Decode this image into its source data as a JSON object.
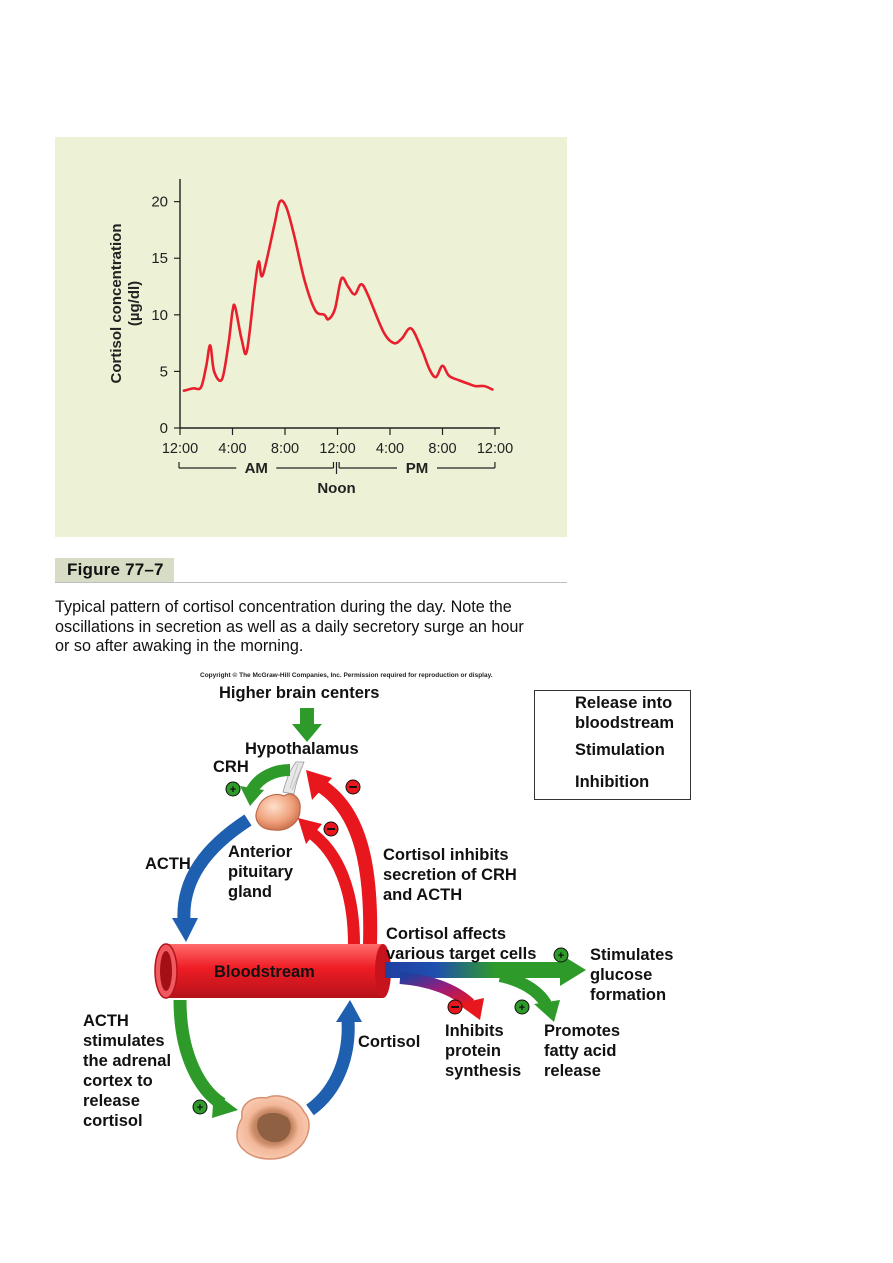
{
  "chart_data": {
    "type": "line",
    "ylabel": "Cortisol concentration\n(µg/dl)",
    "ylabel_line1": "Cortisol concentration",
    "ylabel_line2": "(µg/dl)",
    "ylim": [
      0,
      22
    ],
    "yticks": [
      0,
      5,
      10,
      15,
      20
    ],
    "xticks": [
      "12:00",
      "4:00",
      "8:00",
      "12:00",
      "4:00",
      "8:00",
      "12:00"
    ],
    "xtick_hours": [
      0,
      4,
      8,
      12,
      16,
      20,
      24
    ],
    "xlim": [
      0,
      24
    ],
    "period_labels": {
      "am": "AM",
      "pm": "PM",
      "noon": "Noon"
    },
    "series": [
      {
        "color": "#e8202e",
        "hours": [
          0.3,
          1.0,
          1.6,
          2.0,
          2.3,
          2.6,
          3.2,
          3.7,
          4.0,
          4.2,
          4.7,
          5.1,
          5.7,
          6.0,
          6.3,
          7.2,
          7.6,
          8.1,
          8.7,
          9.5,
          10.3,
          11.0,
          11.3,
          11.8,
          12.3,
          12.8,
          13.3,
          13.8,
          14.3,
          15.5,
          16.3,
          16.9,
          17.6,
          18.4,
          19.0,
          19.5,
          20.0,
          20.5,
          21.3,
          22.0,
          22.5,
          23.2,
          23.8
        ],
        "values": [
          3.3,
          3.5,
          3.6,
          5.5,
          7.3,
          5.0,
          4.3,
          7.5,
          10.3,
          10.7,
          7.8,
          6.8,
          12.5,
          14.7,
          13.5,
          18.0,
          20.0,
          19.5,
          17.0,
          13.0,
          10.4,
          10.0,
          9.6,
          10.5,
          13.2,
          12.5,
          11.8,
          12.7,
          11.8,
          8.5,
          7.5,
          7.9,
          8.8,
          7.0,
          5.2,
          4.5,
          5.5,
          4.6,
          4.2,
          3.9,
          3.7,
          3.7,
          3.4
        ]
      }
    ]
  },
  "figure": {
    "label": "Figure 77–7",
    "caption_lines": [
      "Typical pattern of cortisol concentration during the day. Note the",
      "oscillations in secretion as well as a daily secretory surge an hour",
      "or so after awaking in the morning."
    ]
  },
  "diagram": {
    "copyright": "Copyright © The McGraw-Hill Companies, Inc. Permission required for reproduction or display.",
    "higher_brain": "Higher brain centers",
    "hypothalamus": "Hypothalamus",
    "crh": "CRH",
    "acth": "ACTH",
    "pituitary": [
      "Anterior",
      "pituitary",
      "gland"
    ],
    "inhibits": [
      "Cortisol inhibits",
      "secretion of CRH",
      "and ACTH"
    ],
    "affects": [
      "Cortisol affects",
      "various target cells"
    ],
    "bloodstream": "Bloodstream",
    "glucose": [
      "Stimulates",
      "glucose",
      "formation"
    ],
    "protein": [
      "Inhibits",
      "protein",
      "synthesis"
    ],
    "fatty": [
      "Promotes",
      "fatty acid",
      "release"
    ],
    "acth_stim": [
      "ACTH",
      "stimulates",
      "the adrenal",
      "cortex to",
      "release",
      "cortisol"
    ],
    "cortisol": "Cortisol",
    "legend": {
      "release": [
        "Release into",
        "bloodstream"
      ],
      "stimulation": "Stimulation",
      "inhibition": "Inhibition"
    },
    "colors": {
      "release": "#1f5fb0",
      "stimulation": "#2e9a2a",
      "inhibition": "#e8161d"
    }
  }
}
